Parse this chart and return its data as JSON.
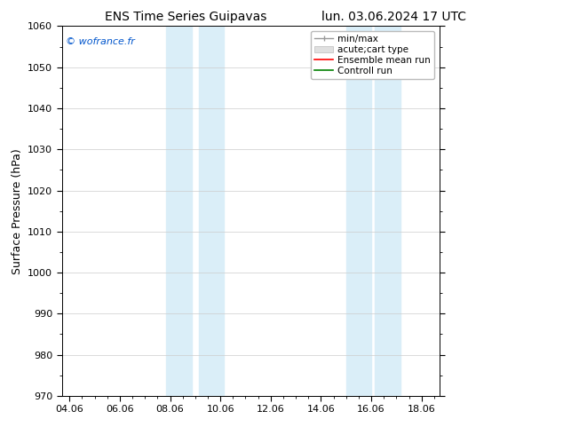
{
  "title_left": "ENS Time Series Guipavas",
  "title_right": "lun. 03.06.2024 17 UTC",
  "ylabel": "Surface Pressure (hPa)",
  "ylim": [
    970,
    1060
  ],
  "yticks": [
    970,
    980,
    990,
    1000,
    1010,
    1020,
    1030,
    1040,
    1050,
    1060
  ],
  "xtick_labels": [
    "04.06",
    "06.06",
    "08.06",
    "10.06",
    "12.06",
    "14.06",
    "16.06",
    "18.06"
  ],
  "xtick_positions": [
    0,
    2,
    4,
    6,
    8,
    10,
    12,
    14
  ],
  "xlim": [
    -0.3,
    14.7
  ],
  "shaded_bands": [
    {
      "xmin": 3.85,
      "xmax": 4.85
    },
    {
      "xmin": 5.15,
      "xmax": 6.15
    },
    {
      "xmin": 11.0,
      "xmax": 12.0
    },
    {
      "xmin": 12.15,
      "xmax": 13.15
    }
  ],
  "shade_color": "#daeef8",
  "watermark": "© wofrance.fr",
  "background_color": "#ffffff",
  "grid_color": "#cccccc",
  "title_fontsize": 10,
  "tick_fontsize": 8,
  "ylabel_fontsize": 9,
  "legend_fontsize": 7.5
}
